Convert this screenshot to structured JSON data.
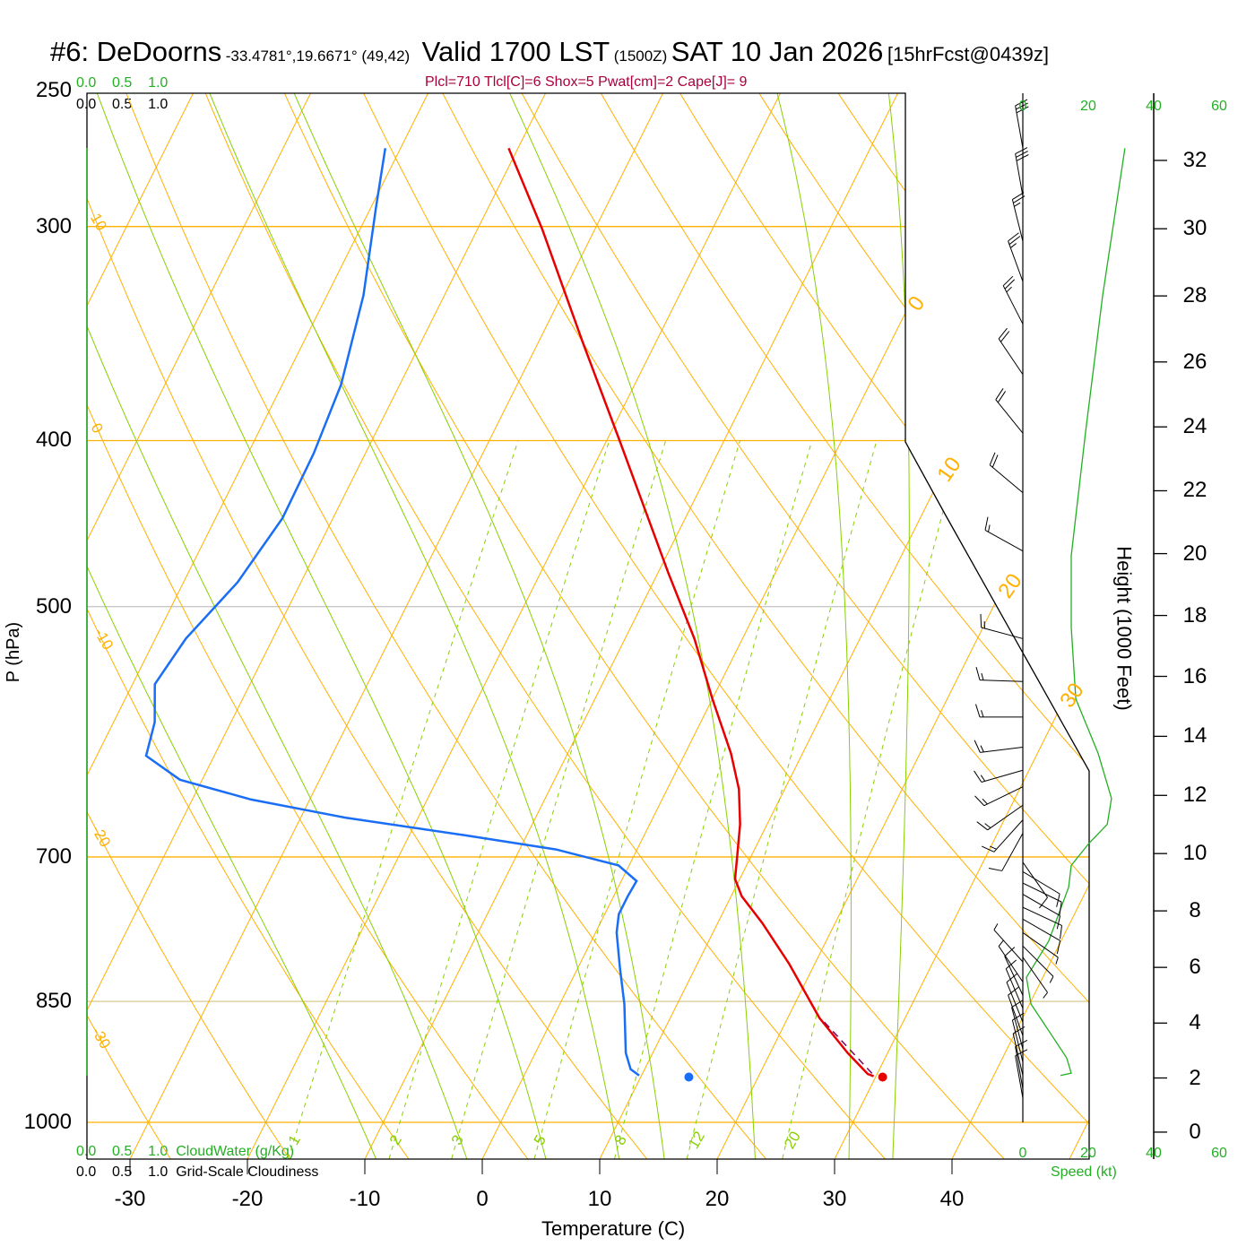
{
  "header": {
    "station": "#6: DeDoorns",
    "coords": "-33.4781°,19.6671° (49,42)",
    "valid": "Valid 1700 LST",
    "utc": "(1500Z)",
    "date": "SAT 10 Jan 2026",
    "forecast": "[15hrFcst@0439z]",
    "indices": "Plcl=710 Tlcl[C]=6 Shox=5 Pwat[cm]=2 Cape[J]= 9"
  },
  "cloud_scale": {
    "top_green": [
      "0.0",
      "0.5",
      "1.0"
    ],
    "top_black": [
      "0.0",
      "0.5",
      "1.0"
    ],
    "bottom_green": [
      "0.0",
      "0.5",
      "1.0"
    ],
    "bottom_black": [
      "0.0",
      "0.5",
      "1.0"
    ],
    "cloudwater_label": "CloudWater (g/Kg)",
    "cloudiness_label": "Grid-Scale Cloudiness"
  },
  "colors": {
    "temperature": "#e80000",
    "dewpoint": "#1a6ef5",
    "parcel": "#800060",
    "isotherm": "#ffb000",
    "moist_adiabat": "#88d000",
    "mixing_ratio": "#88d000",
    "wind_speed": "#22b022",
    "indices": "#a8003c"
  },
  "chart_data": {
    "type": "skewt",
    "title": "#6: DeDoorns Valid 1700 LST (1500Z) SAT 10 Jan 2026",
    "xlabel": "Temperature (C)",
    "ylabel": "P (hPa)",
    "y2label": "Height (1000 Feet)",
    "speed_label": "Speed (kt)",
    "xlim": [
      -34,
      36
    ],
    "ylim": [
      1050,
      250
    ],
    "x_ticks": [
      "-30",
      "-20",
      "-10",
      "0",
      "10",
      "20",
      "30",
      "40"
    ],
    "x_tick_values": [
      -30,
      -20,
      -10,
      0,
      10,
      20,
      30,
      40
    ],
    "pressure_ticks": [
      "250",
      "300",
      "400",
      "500",
      "700",
      "850",
      "1000"
    ],
    "pressure_tick_values": [
      250,
      300,
      400,
      500,
      700,
      850,
      1000
    ],
    "height_ticks": [
      "0",
      "2",
      "4",
      "6",
      "8",
      "10",
      "12",
      "14",
      "16",
      "18",
      "20",
      "22",
      "24",
      "26",
      "28",
      "30",
      "32"
    ],
    "height_tick_values": [
      0,
      2,
      4,
      6,
      8,
      10,
      12,
      14,
      16,
      18,
      20,
      22,
      24,
      26,
      28,
      30,
      32
    ],
    "speed_ticks": [
      "0",
      "20",
      "40",
      "60"
    ],
    "speed_tick_values": [
      0,
      20,
      40,
      60
    ],
    "isotherm_labels": [
      "0",
      "10",
      "20",
      "30"
    ],
    "isotherm_label_values": [
      0,
      10,
      20,
      30
    ],
    "dry_adiabat_labels": [
      "10",
      "0",
      "-10",
      "-20",
      "-30"
    ],
    "mixing_ratio_labels": [
      "1",
      "2",
      "3",
      "5",
      "8",
      "12",
      "20"
    ],
    "mixing_ratio_values": [
      1,
      2,
      3,
      5,
      8,
      12,
      20
    ],
    "moist_adiabat_start_temps_1000hPa": [
      -12,
      -4,
      3,
      9.5,
      13.5,
      21.5,
      29.7,
      33.5
    ],
    "temperature": {
      "p": [
        270,
        301,
        350,
        400,
        478,
        522,
        566,
        609,
        639,
        670,
        699,
        721,
        738,
        765,
        808,
        869,
        911,
        937,
        940
      ],
      "t": [
        -40.8,
        -34.5,
        -26.3,
        -18.9,
        -9.1,
        -4.1,
        0.0,
        3.9,
        6.1,
        7.7,
        8.8,
        9.6,
        10.9,
        13.8,
        17.8,
        22.7,
        26.6,
        29.2,
        29.8
      ]
    },
    "dewpoint": {
      "p": [
        270,
        292,
        329,
        371,
        407,
        444,
        484,
        522,
        555,
        584,
        611,
        631,
        648,
        664,
        680,
        693,
        708,
        723,
        738,
        756,
        775,
        813,
        853,
        911,
        931,
        939
      ],
      "t": [
        -51.3,
        -49.6,
        -46.9,
        -45.0,
        -44.4,
        -44.3,
        -45.4,
        -47.4,
        -48.1,
        -46.5,
        -45.8,
        -41.9,
        -35.0,
        -26.2,
        -15.2,
        -6.9,
        -0.9,
        1.3,
        1.2,
        1.2,
        1.8,
        3.6,
        5.5,
        7.7,
        8.8,
        9.8
      ]
    },
    "parcel": {
      "p": [
        874,
        937
      ],
      "t": [
        23.3,
        29.6
      ]
    },
    "surface_temperature": {
      "p": 941,
      "t": 30.6
    },
    "surface_dewpoint": {
      "p": 941,
      "t": 14.1
    },
    "wind_speed_profile": {
      "p": [
        270,
        329,
        395,
        467,
        514,
        566,
        609,
        647,
        670,
        687,
        708,
        729,
        784,
        823,
        853,
        884,
        917,
        936,
        939
      ],
      "kt": [
        31.2,
        24.4,
        19.2,
        14.8,
        14.8,
        16.2,
        23.0,
        27.1,
        25.8,
        20.3,
        14.8,
        14.0,
        7.9,
        1.1,
        2.5,
        7.9,
        13.4,
        14.8,
        11.5
      ]
    },
    "wind_barbs": [
      {
        "p": 270,
        "dir": 190,
        "kt": 30
      },
      {
        "p": 288,
        "dir": 190,
        "kt": 30
      },
      {
        "p": 306,
        "dir": 194,
        "kt": 25
      },
      {
        "p": 323,
        "dir": 200,
        "kt": 25
      },
      {
        "p": 342,
        "dir": 207,
        "kt": 25
      },
      {
        "p": 366,
        "dir": 214,
        "kt": 20
      },
      {
        "p": 396,
        "dir": 219,
        "kt": 20
      },
      {
        "p": 429,
        "dir": 230,
        "kt": 20
      },
      {
        "p": 464,
        "dir": 241,
        "kt": 15
      },
      {
        "p": 522,
        "dir": 255,
        "kt": 15
      },
      {
        "p": 553,
        "dir": 268,
        "kt": 15
      },
      {
        "p": 580,
        "dir": 270,
        "kt": 15
      },
      {
        "p": 604,
        "dir": 277,
        "kt": 15
      },
      {
        "p": 623,
        "dir": 286,
        "kt": 15
      },
      {
        "p": 637,
        "dir": 296,
        "kt": 15
      },
      {
        "p": 653,
        "dir": 305,
        "kt": 15
      },
      {
        "p": 666,
        "dir": 318,
        "kt": 15
      },
      {
        "p": 678,
        "dir": 331,
        "kt": 10
      },
      {
        "p": 705,
        "dir": 35,
        "kt": 10
      },
      {
        "p": 714,
        "dir": 59,
        "kt": 10
      },
      {
        "p": 725,
        "dir": 64,
        "kt": 10
      },
      {
        "p": 736,
        "dir": 60,
        "kt": 10
      },
      {
        "p": 749,
        "dir": 65,
        "kt": 10
      },
      {
        "p": 761,
        "dir": 60,
        "kt": 10
      },
      {
        "p": 775,
        "dir": 55,
        "kt": 5
      },
      {
        "p": 789,
        "dir": 45,
        "kt": 5
      },
      {
        "p": 801,
        "dir": 35,
        "kt": 5
      },
      {
        "p": 806,
        "dir": 222,
        "kt": 5
      },
      {
        "p": 828,
        "dir": 214,
        "kt": 5
      },
      {
        "p": 843,
        "dir": 205,
        "kt": 10
      },
      {
        "p": 858,
        "dir": 203,
        "kt": 10
      },
      {
        "p": 874,
        "dir": 202,
        "kt": 10
      },
      {
        "p": 890,
        "dir": 200,
        "kt": 10
      },
      {
        "p": 906,
        "dir": 195,
        "kt": 10
      },
      {
        "p": 922,
        "dir": 194,
        "kt": 10
      },
      {
        "p": 939,
        "dir": 193,
        "kt": 10
      },
      {
        "p": 956,
        "dir": 190,
        "kt": 10
      },
      {
        "p": 968,
        "dir": 190,
        "kt": 10
      }
    ]
  }
}
